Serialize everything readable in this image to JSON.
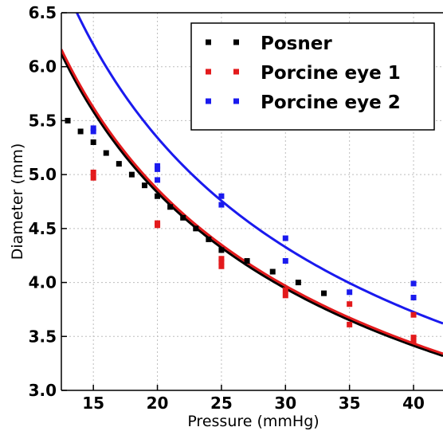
{
  "chart_data": {
    "type": "scatter",
    "title": "",
    "xlabel": "Pressure (mmHg)",
    "ylabel": "Diameter (mm)",
    "xlim": [
      12.5,
      42.3
    ],
    "ylim": [
      3.0,
      6.5
    ],
    "xticks": [
      15,
      20,
      25,
      30,
      35,
      40
    ],
    "yticks": [
      3.0,
      3.5,
      4.0,
      4.5,
      5.0,
      5.5,
      6.0,
      6.5
    ],
    "xtick_labels": [
      "15",
      "20",
      "25",
      "30",
      "35",
      "40"
    ],
    "ytick_labels": [
      "3.0",
      "3.5",
      "4.0",
      "4.5",
      "5.0",
      "5.5",
      "6.0",
      "6.5"
    ],
    "grid": true,
    "legend_position": "top-right",
    "series": [
      {
        "name": "Posner",
        "color": "#000000",
        "x": [
          13,
          14,
          15,
          16,
          17,
          18,
          19,
          20,
          21,
          22,
          23,
          24,
          25,
          27,
          29,
          31,
          33
        ],
        "y": [
          5.5,
          5.4,
          5.3,
          5.2,
          5.1,
          5.0,
          4.9,
          4.8,
          4.7,
          4.6,
          4.5,
          4.4,
          4.3,
          4.2,
          4.1,
          4.0,
          3.9
        ]
      },
      {
        "name": "Porcine eye 1",
        "color": "#e31a1c",
        "x": [
          15,
          15,
          20,
          20,
          25,
          25,
          25,
          30,
          30,
          35,
          35,
          40,
          40,
          40
        ],
        "y": [
          5.02,
          4.97,
          4.55,
          4.53,
          4.22,
          4.19,
          4.15,
          3.93,
          3.88,
          3.8,
          3.61,
          3.7,
          3.49,
          3.46
        ]
      },
      {
        "name": "Porcine eye 2",
        "color": "#1a1aee",
        "x": [
          15,
          15,
          20,
          20,
          20,
          25,
          25,
          30,
          30,
          35,
          40,
          40
        ],
        "y": [
          5.43,
          5.4,
          5.08,
          5.05,
          4.95,
          4.8,
          4.72,
          4.41,
          4.2,
          3.91,
          3.99,
          3.86
        ]
      }
    ],
    "fit_curves": [
      {
        "color": "#000000",
        "x": [
          12.5,
          42.3
        ],
        "y": [
          6.12,
          3.32
        ]
      },
      {
        "color": "#e31a1c",
        "x": [
          12.5,
          42.3
        ],
        "y": [
          6.16,
          3.34
        ]
      },
      {
        "color": "#1a1aee",
        "x": [
          12.5,
          42.3
        ],
        "y": [
          6.82,
          3.62
        ]
      }
    ]
  }
}
